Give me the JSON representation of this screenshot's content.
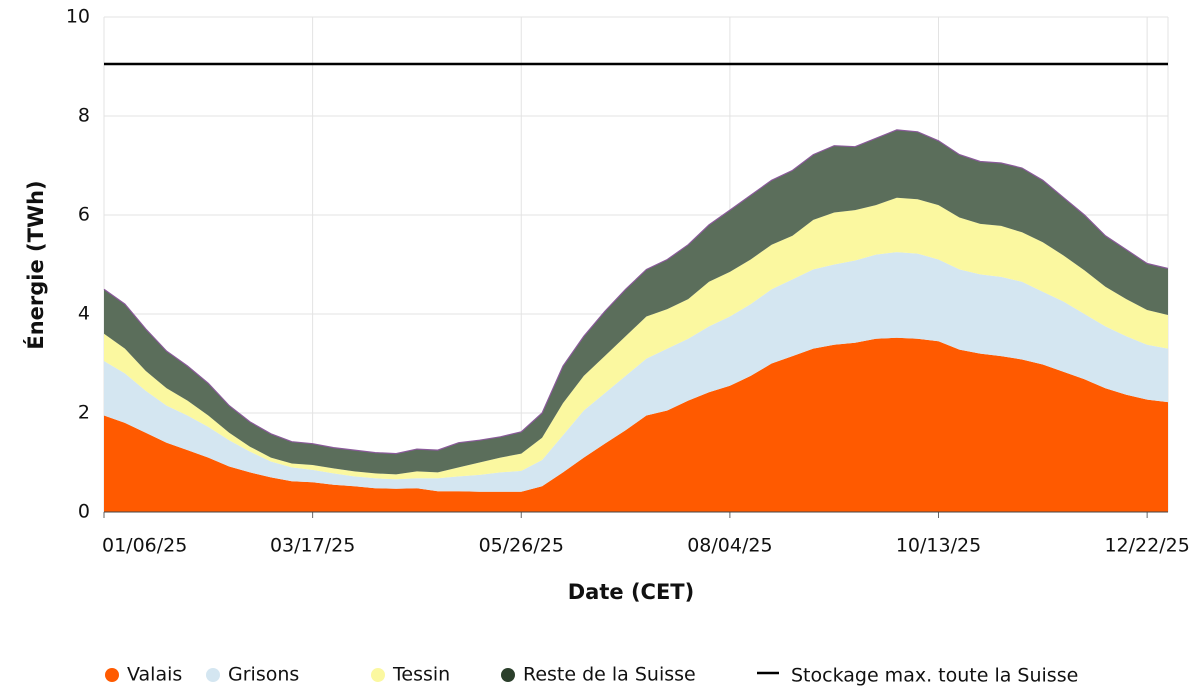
{
  "chart_data": {
    "type": "stacked_area",
    "xlabel": "Date (CET)",
    "ylabel": "Énergie (TWh)",
    "x": [
      "01/06/25",
      "01/13/25",
      "01/20/25",
      "01/27/25",
      "02/03/25",
      "02/10/25",
      "02/17/25",
      "02/24/25",
      "03/03/25",
      "03/10/25",
      "03/17/25",
      "03/24/25",
      "03/31/25",
      "04/07/25",
      "04/14/25",
      "04/21/25",
      "04/28/25",
      "05/05/25",
      "05/12/25",
      "05/19/25",
      "05/26/25",
      "06/02/25",
      "06/09/25",
      "06/16/25",
      "06/23/25",
      "06/30/25",
      "07/07/25",
      "07/14/25",
      "07/21/25",
      "07/28/25",
      "08/04/25",
      "08/11/25",
      "08/18/25",
      "08/25/25",
      "09/01/25",
      "09/08/25",
      "09/15/25",
      "09/22/25",
      "09/29/25",
      "10/06/25",
      "10/13/25",
      "10/20/25",
      "10/27/25",
      "11/03/25",
      "11/10/25",
      "11/17/25",
      "11/24/25",
      "12/01/25",
      "12/08/25",
      "12/15/25",
      "12/22/25",
      "12/29/25"
    ],
    "xlim": [
      "01/06/25",
      "12/29/25"
    ],
    "xticks": [
      "01/06/25",
      "03/17/25",
      "05/26/25",
      "08/04/25",
      "10/13/25",
      "12/22/25"
    ],
    "ylim": [
      0,
      10
    ],
    "yticks": [
      0,
      2,
      4,
      6,
      8,
      10
    ],
    "grid": true,
    "legend": "bottom",
    "series": [
      {
        "name": "Valais",
        "color": "#ff5a00",
        "values": [
          1.95,
          1.8,
          1.6,
          1.4,
          1.25,
          1.1,
          0.92,
          0.8,
          0.7,
          0.62,
          0.6,
          0.55,
          0.52,
          0.48,
          0.47,
          0.48,
          0.42,
          0.42,
          0.41,
          0.41,
          0.41,
          0.52,
          0.8,
          1.1,
          1.38,
          1.65,
          1.95,
          2.05,
          2.25,
          2.42,
          2.55,
          2.75,
          3.0,
          3.15,
          3.3,
          3.38,
          3.42,
          3.5,
          3.52,
          3.5,
          3.45,
          3.28,
          3.2,
          3.15,
          3.08,
          2.98,
          2.83,
          2.68,
          2.5,
          2.37,
          2.27,
          2.22
        ]
      },
      {
        "name": "Grisons",
        "color": "#d4e6f1",
        "values": [
          1.1,
          1.0,
          0.85,
          0.75,
          0.7,
          0.62,
          0.53,
          0.42,
          0.32,
          0.28,
          0.25,
          0.23,
          0.2,
          0.2,
          0.19,
          0.2,
          0.26,
          0.3,
          0.34,
          0.39,
          0.42,
          0.53,
          0.75,
          0.95,
          1.02,
          1.1,
          1.15,
          1.25,
          1.25,
          1.33,
          1.4,
          1.45,
          1.5,
          1.55,
          1.6,
          1.62,
          1.66,
          1.7,
          1.73,
          1.72,
          1.65,
          1.62,
          1.6,
          1.6,
          1.57,
          1.47,
          1.42,
          1.32,
          1.25,
          1.18,
          1.11,
          1.08
        ]
      },
      {
        "name": "Tessin",
        "color": "#fbf8a0",
        "values": [
          0.55,
          0.5,
          0.4,
          0.35,
          0.3,
          0.23,
          0.15,
          0.1,
          0.08,
          0.08,
          0.1,
          0.1,
          0.1,
          0.1,
          0.1,
          0.14,
          0.12,
          0.18,
          0.25,
          0.3,
          0.35,
          0.45,
          0.65,
          0.7,
          0.75,
          0.8,
          0.85,
          0.8,
          0.8,
          0.9,
          0.9,
          0.9,
          0.9,
          0.88,
          1.0,
          1.05,
          1.02,
          1.0,
          1.1,
          1.1,
          1.1,
          1.05,
          1.02,
          1.03,
          1.0,
          1.0,
          0.93,
          0.88,
          0.8,
          0.75,
          0.7,
          0.68
        ]
      },
      {
        "name": "Reste de la Suisse",
        "color": "#5b6e5b",
        "values": [
          0.9,
          0.9,
          0.85,
          0.75,
          0.7,
          0.65,
          0.55,
          0.5,
          0.48,
          0.44,
          0.43,
          0.42,
          0.43,
          0.42,
          0.42,
          0.45,
          0.45,
          0.5,
          0.45,
          0.42,
          0.44,
          0.5,
          0.75,
          0.8,
          0.9,
          0.95,
          0.95,
          1.0,
          1.1,
          1.15,
          1.25,
          1.3,
          1.3,
          1.32,
          1.32,
          1.35,
          1.28,
          1.35,
          1.37,
          1.36,
          1.3,
          1.27,
          1.26,
          1.27,
          1.3,
          1.25,
          1.17,
          1.12,
          1.03,
          1.0,
          0.94,
          0.94
        ]
      }
    ],
    "reference_line": {
      "name": "Stockage max. toute la Suisse",
      "value": 9.05,
      "color": "#000000"
    }
  }
}
